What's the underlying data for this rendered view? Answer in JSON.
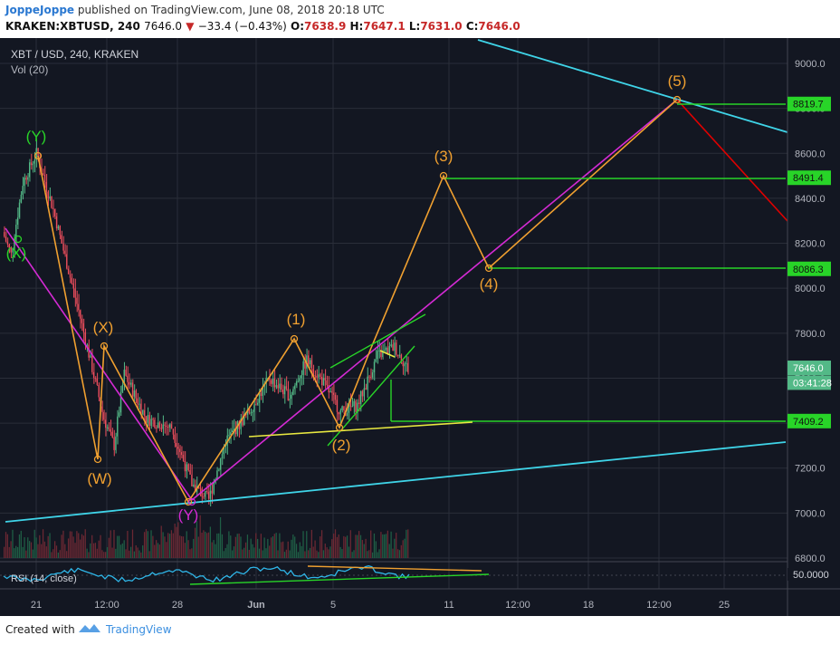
{
  "header": {
    "author": "JoppeJoppe",
    "published": " published on TradingView.com, June 08, 2018 20:18 UTC",
    "symbol": "KRAKEN:XBTUSD, 240",
    "last": "7646.0",
    "change_arrow": "▼",
    "change": "−33.4 (−0.43%)",
    "o_label": "O:",
    "o": "7638.9",
    "h_label": "H:",
    "h": "7647.1",
    "l_label": "L:",
    "l": "7631.0",
    "c_label": "C:",
    "c": "7646.0"
  },
  "legend": {
    "title": "XBT / USD, 240, KRAKEN",
    "vol": "Vol (20)"
  },
  "rsi_label": "RSI (14, close)",
  "footer": {
    "created": "Created with",
    "brand": "TradingView"
  },
  "colors": {
    "bg": "#131722",
    "grid": "#2a2e39",
    "up": "#53b987",
    "down": "#eb4d5c",
    "orange": "#f0a030",
    "magenta": "#d42ad4",
    "cyan": "#3fd4e8",
    "green": "#28d428",
    "red": "#e00000",
    "yellow": "#e8e840",
    "rsi": "#2fb6e8"
  },
  "chart_data": {
    "type": "candlestick",
    "ylim": [
      6760,
      9120
    ],
    "y_ticks": [
      6800,
      7000,
      7200,
      7400,
      7600,
      7800,
      8000,
      8200,
      8400,
      8600,
      8800,
      9000
    ],
    "x_ticks": [
      "21",
      "12:00",
      "28",
      "Jun",
      "5",
      "11",
      "12:00",
      "18",
      "12:00",
      "25"
    ],
    "price_labels": [
      {
        "text": "8819.7",
        "value": 8819.7
      },
      {
        "text": "8491.4",
        "value": 8491.4
      },
      {
        "text": "8086.3",
        "value": 8086.3
      },
      {
        "text": "7646.0",
        "value": 7646.0
      },
      {
        "text": "03:41:28",
        "value": 7580
      },
      {
        "text": "7409.2",
        "value": 7409.2
      }
    ],
    "price_anchors": [
      {
        "t": 0,
        "v": 8250
      },
      {
        "t": 5,
        "v": 8150
      },
      {
        "t": 12,
        "v": 8470
      },
      {
        "t": 20,
        "v": 8600
      },
      {
        "t": 30,
        "v": 8350
      },
      {
        "t": 45,
        "v": 7900
      },
      {
        "t": 60,
        "v": 7420
      },
      {
        "t": 66,
        "v": 7300
      },
      {
        "t": 72,
        "v": 7620
      },
      {
        "t": 85,
        "v": 7420
      },
      {
        "t": 100,
        "v": 7380
      },
      {
        "t": 112,
        "v": 7130
      },
      {
        "t": 122,
        "v": 7060
      },
      {
        "t": 132,
        "v": 7320
      },
      {
        "t": 145,
        "v": 7440
      },
      {
        "t": 158,
        "v": 7600
      },
      {
        "t": 170,
        "v": 7520
      },
      {
        "t": 180,
        "v": 7680
      },
      {
        "t": 190,
        "v": 7580
      },
      {
        "t": 200,
        "v": 7450
      },
      {
        "t": 210,
        "v": 7480
      },
      {
        "t": 222,
        "v": 7700
      },
      {
        "t": 232,
        "v": 7740
      },
      {
        "t": 240,
        "v": 7640
      }
    ],
    "rsi_value": "50.0000",
    "rsi_label": "RSI (14, close)",
    "wave_labels": [
      {
        "text": "(Y)",
        "color": "green"
      },
      {
        "text": "(X)",
        "color": "green"
      },
      {
        "text": "(X)",
        "color": "orange"
      },
      {
        "text": "(W)",
        "color": "orange"
      },
      {
        "text": "(Y)",
        "color": "magenta"
      },
      {
        "text": "(1)",
        "color": "orange"
      },
      {
        "text": "(2)",
        "color": "orange"
      },
      {
        "text": "(3)",
        "color": "orange"
      },
      {
        "text": "(4)",
        "color": "orange"
      },
      {
        "text": "(5)",
        "color": "orange"
      }
    ]
  }
}
